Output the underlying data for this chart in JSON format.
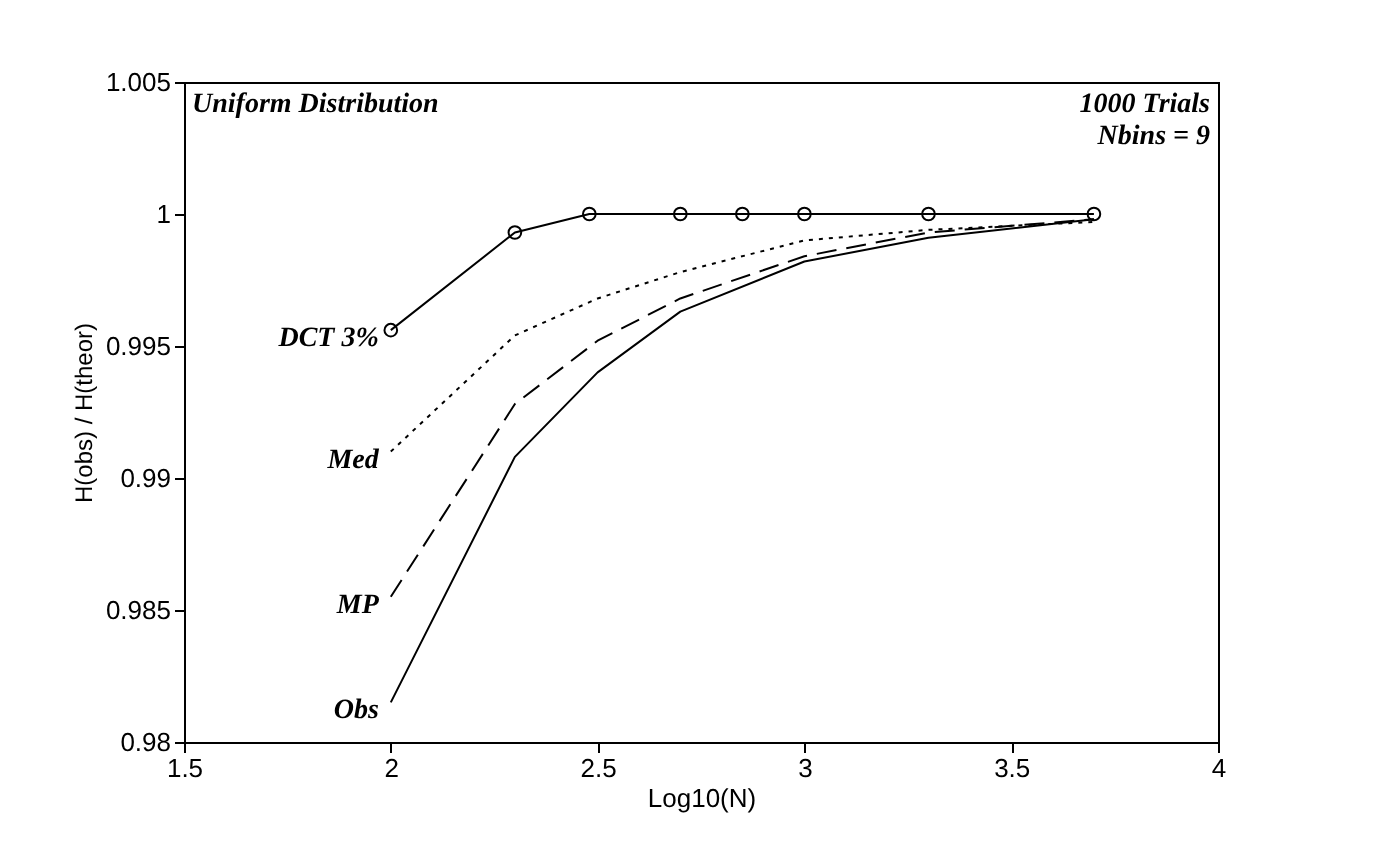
{
  "chart_data": {
    "type": "line",
    "xlabel": "Log10(N)",
    "ylabel": "H(obs) / H(theor)",
    "xlim": [
      1.5,
      4
    ],
    "xticks": [
      1.5,
      2,
      2.5,
      3,
      3.5,
      4
    ],
    "ylim": [
      0.98,
      1.005
    ],
    "yticks": [
      0.98,
      0.985,
      0.99,
      0.995,
      1,
      1.005
    ],
    "grid": false,
    "annotations": [
      "Uniform Distribution",
      "1000 Trials",
      "Nbins = 9"
    ],
    "series": [
      {
        "name": "DCT 3%",
        "color": "#000000",
        "marker": "circle",
        "line_style": "solid",
        "x": [
          2,
          2.3,
          2.48,
          2.7,
          2.85,
          3,
          3.3,
          3.7
        ],
        "values": [
          0.9956,
          0.9993,
          1,
          1,
          1,
          1,
          1,
          1
        ]
      },
      {
        "name": "Med",
        "color": "#000000",
        "marker": "none",
        "line_style": "dotted",
        "x": [
          2,
          2.3,
          2.5,
          2.7,
          3,
          3.3,
          3.7
        ],
        "values": [
          0.991,
          0.9954,
          0.9968,
          0.9978,
          0.999,
          0.9994,
          0.9997
        ]
      },
      {
        "name": "MP",
        "color": "#000000",
        "marker": "none",
        "line_style": "dashed",
        "x": [
          2,
          2.3,
          2.5,
          2.7,
          3,
          3.3,
          3.7
        ],
        "values": [
          0.9855,
          0.9928,
          0.9952,
          0.9968,
          0.9984,
          0.9993,
          0.9998
        ]
      },
      {
        "name": "Obs",
        "color": "#000000",
        "marker": "none",
        "line_style": "solid",
        "x": [
          2,
          2.3,
          2.5,
          2.7,
          3,
          3.3,
          3.7
        ],
        "values": [
          0.9815,
          0.9908,
          0.994,
          0.9963,
          0.9982,
          0.9991,
          0.9998
        ]
      }
    ]
  }
}
